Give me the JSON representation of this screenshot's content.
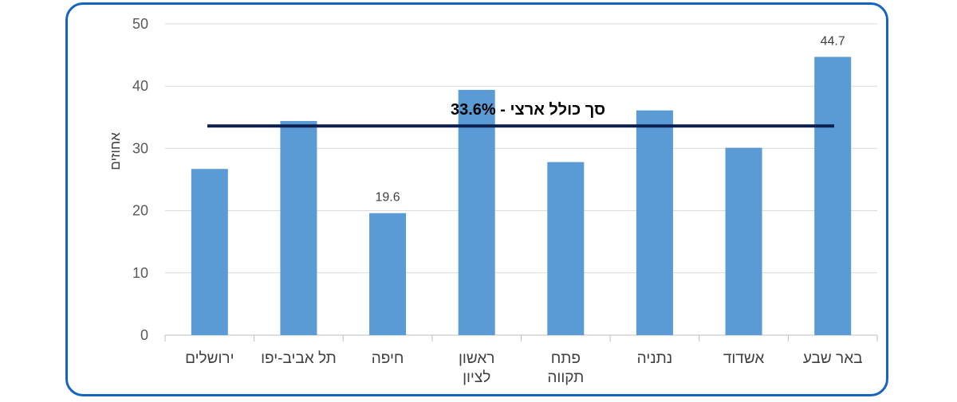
{
  "chart_data": {
    "type": "bar",
    "categories": [
      "באר שבע",
      "אשדוד",
      "נתניה",
      "פתח תקווה",
      "ראשון לציון",
      "חיפה",
      "תל אביב-יפו",
      "ירושלים"
    ],
    "category_lines": [
      [
        "באר שבע"
      ],
      [
        "אשדוד"
      ],
      [
        "נתניה"
      ],
      [
        "פתח",
        "תקווה"
      ],
      [
        "ראשון",
        "לציון"
      ],
      [
        "חיפה"
      ],
      [
        "תל אביב-יפו"
      ],
      [
        "ירושלים"
      ]
    ],
    "values": [
      44.7,
      30.1,
      36.1,
      27.8,
      39.4,
      19.6,
      34.4,
      26.7
    ],
    "data_labels": [
      "44.7",
      "",
      "",
      "",
      "",
      "19.6",
      "",
      ""
    ],
    "ylabel": "אחוזים",
    "ylim": [
      0,
      50
    ],
    "yticks": [
      0,
      10,
      20,
      30,
      40,
      50
    ],
    "grid": true,
    "bar_color": "#5b9bd5",
    "reference_line": {
      "value": 33.6,
      "label": "סך כולל ארצי - 33.6%",
      "color": "#0d1f4f"
    },
    "frame_color": "#1565c0"
  }
}
